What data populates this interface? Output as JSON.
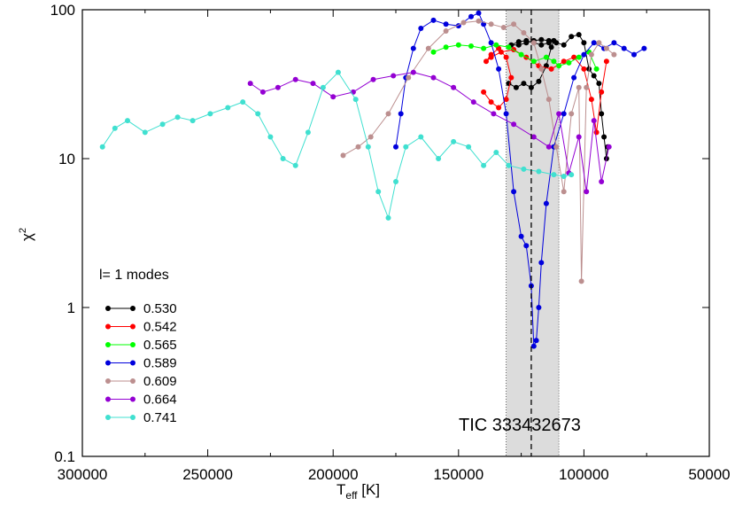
{
  "chart_data": {
    "type": "line",
    "xlabel_main": "T",
    "xlabel_sub": "eff",
    "xlabel_unit": " [K]",
    "ylabel_main": "χ",
    "ylabel_sup": "2",
    "xlim": [
      300000,
      50000
    ],
    "ylim": [
      0.1,
      100
    ],
    "yscale": "log",
    "xticks": [
      300000,
      250000,
      200000,
      150000,
      100000,
      50000
    ],
    "xtick_labels": [
      "300000",
      "250000",
      "200000",
      "150000",
      "100000",
      "50000"
    ],
    "yticks": [
      0.1,
      1,
      10,
      100
    ],
    "ytick_labels": [
      "0.1",
      "1",
      "10",
      "100"
    ],
    "legend_title": "l= 1 modes",
    "legend_placement": "left-middle",
    "annotation": "TIC 333432673",
    "shaded_band": [
      131000,
      110000
    ],
    "vline": 121000,
    "series": [
      {
        "name": "0.530",
        "color": "#000000",
        "x": [
          130000,
          127000,
          124000,
          121000,
          118000,
          115000,
          113000,
          112000,
          114000,
          117000,
          120000,
          123000,
          126000,
          129000,
          126000,
          123000,
          120000,
          117000,
          114000,
          111000,
          108000,
          105000,
          102000,
          100000,
          98000,
          96000,
          94000,
          93000,
          92000,
          91000,
          90500
        ],
        "y": [
          32,
          30,
          32,
          30,
          33,
          42,
          56,
          62,
          60,
          58,
          60,
          62,
          61,
          58,
          58,
          60,
          62,
          63,
          62,
          60,
          58,
          66,
          68,
          60,
          40,
          36,
          32,
          20,
          14,
          10,
          12
        ]
      },
      {
        "name": "0.542",
        "color": "#ff0000",
        "x": [
          140000,
          137000,
          134000,
          131000,
          129000,
          131000,
          134000,
          137000,
          139000,
          137000,
          133000,
          128000,
          123000,
          118000,
          113000,
          108000,
          104000,
          100000,
          97000,
          95000,
          93000,
          91000
        ],
        "y": [
          28,
          24,
          22,
          25,
          35,
          48,
          55,
          50,
          45,
          48,
          52,
          54,
          48,
          42,
          40,
          45,
          48,
          40,
          25,
          15,
          28,
          45
        ]
      },
      {
        "name": "0.565",
        "color": "#00ff00",
        "x": [
          160000,
          155000,
          150000,
          145000,
          140000,
          135000,
          130000,
          125000,
          120000,
          115000,
          112000,
          110000,
          106000,
          102000,
          98000,
          95000
        ],
        "y": [
          52,
          56,
          58,
          57,
          55,
          58,
          56,
          50,
          45,
          48,
          45,
          42,
          44,
          48,
          52,
          40
        ]
      },
      {
        "name": "0.589",
        "color": "#0000dd",
        "x": [
          175000,
          173000,
          171000,
          168000,
          165000,
          160000,
          155000,
          150000,
          145000,
          142000,
          140000,
          137000,
          134000,
          131000,
          128000,
          125000,
          123000,
          121000,
          120000,
          119000,
          118000,
          117000,
          115000,
          112000,
          108000,
          104000,
          100000,
          96000,
          92000,
          88000,
          84000,
          80000,
          76000
        ],
        "y": [
          12,
          20,
          35,
          55,
          75,
          85,
          80,
          78,
          90,
          95,
          80,
          60,
          40,
          20,
          6,
          3,
          2.6,
          1.4,
          0.55,
          0.6,
          1,
          2,
          5,
          12,
          20,
          35,
          50,
          60,
          55,
          60,
          55,
          50,
          55
        ]
      },
      {
        "name": "0.609",
        "color": "#bc8f8f",
        "x": [
          196000,
          190000,
          185000,
          178000,
          170000,
          162000,
          155000,
          148000,
          142000,
          137000,
          132000,
          128000,
          124000,
          120000,
          117000,
          114000,
          111000,
          108000,
          105000,
          102000,
          101000,
          99000,
          97000,
          94000,
          91000,
          88000
        ],
        "y": [
          10.5,
          12,
          14,
          20,
          35,
          55,
          72,
          82,
          84,
          80,
          76,
          80,
          70,
          60,
          40,
          25,
          12,
          6,
          20,
          30,
          1.5,
          30,
          50,
          60,
          55,
          50
        ]
      },
      {
        "name": "0.664",
        "color": "#9400d3",
        "x": [
          233000,
          228000,
          222000,
          215000,
          208000,
          200000,
          192000,
          184000,
          176000,
          168000,
          160000,
          152000,
          144000,
          136000,
          128000,
          120000,
          114000,
          110000,
          106000,
          102000,
          99000,
          96000,
          93000,
          90000
        ],
        "y": [
          32,
          28,
          30,
          34,
          32,
          26,
          28,
          34,
          36,
          38,
          35,
          30,
          24,
          20,
          17,
          14,
          12,
          20,
          8,
          14,
          6,
          18,
          7,
          12
        ]
      },
      {
        "name": "0.741",
        "color": "#40e0d0",
        "x": [
          292000,
          287000,
          282000,
          275000,
          268000,
          262000,
          256000,
          249000,
          242000,
          236000,
          230000,
          225000,
          220000,
          215000,
          210000,
          204000,
          198000,
          191000,
          186000,
          182000,
          178000,
          175000,
          171000,
          165000,
          158000,
          152000,
          146000,
          140000,
          135000,
          130000,
          124000,
          118000,
          112000,
          108000,
          105000
        ],
        "y": [
          12,
          16,
          18,
          15,
          17,
          19,
          18,
          20,
          22,
          24,
          20,
          14,
          10,
          9,
          15,
          30,
          38,
          25,
          12,
          6,
          4,
          7,
          12,
          14,
          10,
          13,
          12,
          9,
          11,
          9,
          8.5,
          8.2,
          7.8,
          7.6,
          7.8
        ]
      }
    ]
  }
}
